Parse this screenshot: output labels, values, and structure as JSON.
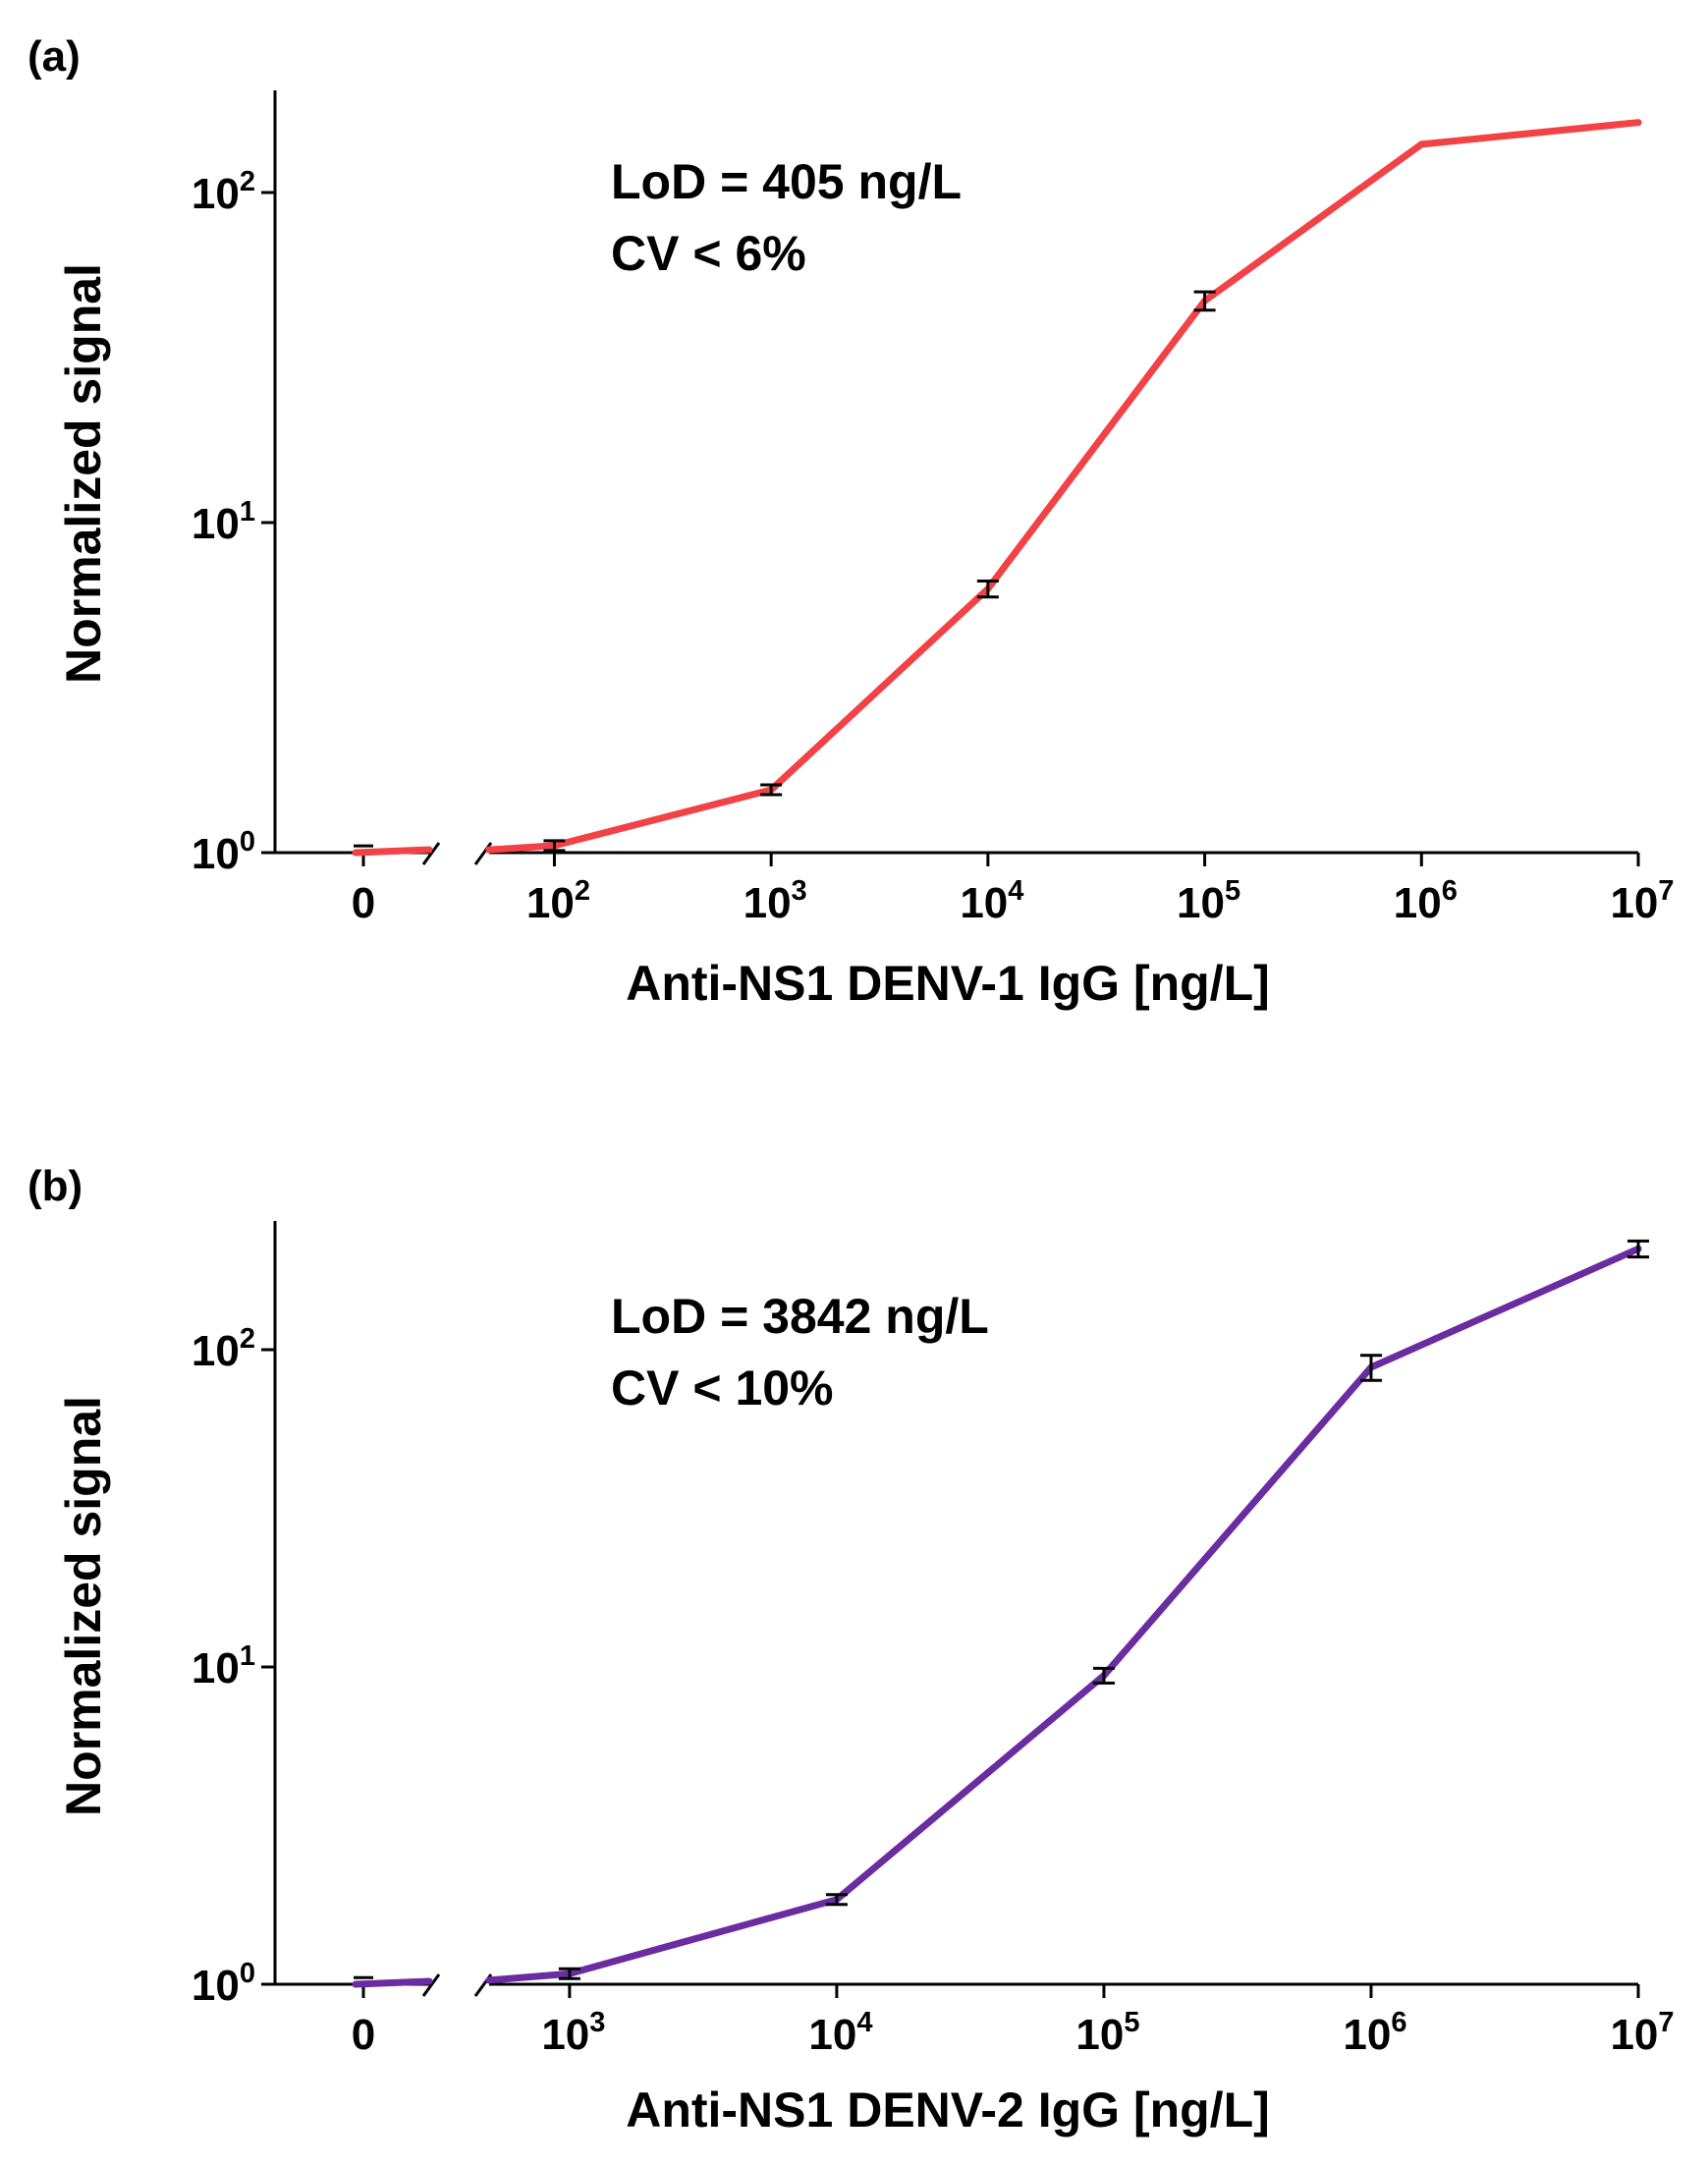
{
  "chart_data": [
    {
      "id": "a",
      "type": "line",
      "panel_label": "(a)",
      "color": "#f24246",
      "xscale": "log",
      "yscale": "log",
      "xlabel": "Anti-NS1 DENV-1 IgG [ng/L]",
      "ylabel": "Normalized signal",
      "annotations": [
        "LoD = 405 ng/L",
        "CV < 6%"
      ],
      "ylim": [
        1,
        200
      ],
      "xlim": [
        50,
        10000000
      ],
      "zero_label": "0",
      "zero_point": {
        "x": 0,
        "y": 1.0,
        "err": 0.02
      },
      "x_ticks": [
        {
          "value": 100,
          "base": "10",
          "exp": "2"
        },
        {
          "value": 1000,
          "base": "10",
          "exp": "3"
        },
        {
          "value": 10000,
          "base": "10",
          "exp": "4"
        },
        {
          "value": 100000,
          "base": "10",
          "exp": "5"
        },
        {
          "value": 1000000,
          "base": "10",
          "exp": "6"
        },
        {
          "value": 10000000,
          "base": "10",
          "exp": "7"
        }
      ],
      "y_ticks": [
        {
          "value": 1,
          "base": "10",
          "exp": "0"
        },
        {
          "value": 10,
          "base": "10",
          "exp": "1"
        },
        {
          "value": 100,
          "base": "10",
          "exp": "2"
        }
      ],
      "series": [
        {
          "name": "DENV-1",
          "x": [
            50,
            100,
            1000,
            10000,
            100000,
            1000000,
            10000000
          ],
          "y": [
            1.02,
            1.05,
            1.55,
            6.3,
            47,
            140,
            163
          ],
          "err": [
            0,
            0.02,
            0.03,
            0.35,
            3,
            0,
            0
          ]
        }
      ]
    },
    {
      "id": "b",
      "type": "line",
      "panel_label": "(b)",
      "color": "#6a2ca0",
      "xscale": "log",
      "yscale": "log",
      "xlabel": "Anti-NS1 DENV-2 IgG [ng/L]",
      "ylabel": "Normalized signal",
      "annotations": [
        "LoD = 3842 ng/L",
        "CV < 10%"
      ],
      "ylim": [
        1,
        250
      ],
      "xlim": [
        500,
        10000000
      ],
      "zero_label": "0",
      "zero_point": {
        "x": 0,
        "y": 1.0,
        "err": 0.02
      },
      "x_ticks": [
        {
          "value": 1000,
          "base": "10",
          "exp": "3"
        },
        {
          "value": 10000,
          "base": "10",
          "exp": "4"
        },
        {
          "value": 100000,
          "base": "10",
          "exp": "5"
        },
        {
          "value": 1000000,
          "base": "10",
          "exp": "6"
        },
        {
          "value": 10000000,
          "base": "10",
          "exp": "7"
        }
      ],
      "y_ticks": [
        {
          "value": 1,
          "base": "10",
          "exp": "0"
        },
        {
          "value": 10,
          "base": "10",
          "exp": "1"
        },
        {
          "value": 100,
          "base": "10",
          "exp": "2"
        }
      ],
      "series": [
        {
          "name": "DENV-2",
          "x": [
            500,
            1000,
            10000,
            100000,
            1000000,
            10000000
          ],
          "y": [
            1.03,
            1.08,
            1.85,
            9.4,
            88,
            208
          ],
          "err": [
            0,
            0.02,
            0.04,
            0.5,
            8,
            12
          ]
        }
      ]
    }
  ]
}
